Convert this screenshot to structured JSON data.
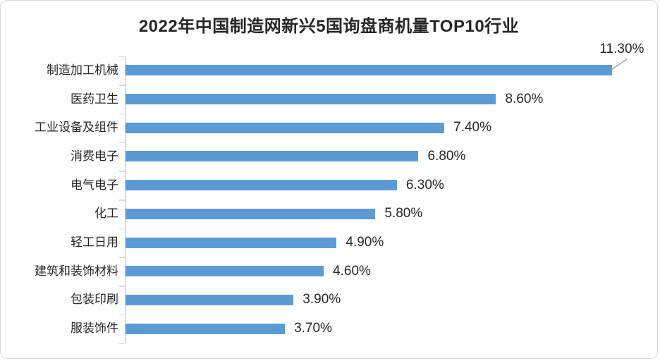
{
  "chart_data": {
    "type": "bar",
    "orientation": "horizontal",
    "title": "2022年中国制造网新兴5国询盘商机量TOP10行业",
    "title_parts": {
      "prefix": "2022年中国制造网新兴5国询盘商机量",
      "bold": "TOP10",
      "suffix": "行业"
    },
    "categories": [
      "制造加工机械",
      "医药卫生",
      "工业设备及组件",
      "消费电子",
      "电气电子",
      "化工",
      "轻工日用",
      "建筑和装饰材料",
      "包装印刷",
      "服装饰件"
    ],
    "values": [
      11.3,
      8.6,
      7.4,
      6.8,
      6.3,
      5.8,
      4.9,
      4.6,
      3.9,
      3.7
    ],
    "value_labels": [
      "11.30%",
      "8.60%",
      "7.40%",
      "6.80%",
      "6.30%",
      "5.80%",
      "4.90%",
      "4.60%",
      "3.90%",
      "3.70%"
    ],
    "xlim": [
      0,
      12.4
    ],
    "xlabel": "",
    "ylabel": "",
    "grid": false,
    "legend": false,
    "first_label_is_callout": true,
    "colors": {
      "bar": "#5b9bd5",
      "axis": "#d9d9d9",
      "text": "#262626",
      "leader_line": "#a6a6a6"
    }
  }
}
